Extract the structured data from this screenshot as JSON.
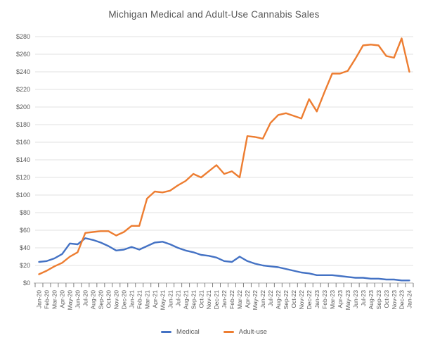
{
  "chart_data": {
    "type": "line",
    "title": "Michigan Medical and Adult-Use Cannabis Sales",
    "categories": [
      "Jan-20",
      "Feb-20",
      "Mar-20",
      "Apr-20",
      "May-20",
      "Jun-20",
      "Jul-20",
      "Aug-20",
      "Sep-20",
      "Oct-20",
      "Nov-20",
      "Dec-20",
      "Jan-21",
      "Feb-21",
      "Mar-21",
      "Apr-21",
      "May-21",
      "Jun-21",
      "Jul-21",
      "Aug-21",
      "Sep-21",
      "Oct-21",
      "Nov-21",
      "Dec-21",
      "Jan-22",
      "Feb-22",
      "Mar-22",
      "Apr-22",
      "May-22",
      "Jun-22",
      "Jul-22",
      "Aug-22",
      "Sep-22",
      "Oct-22",
      "Nov-22",
      "Dec-22",
      "Jan-23",
      "Feb-23",
      "Mar-23",
      "Apr-23",
      "May-23",
      "Jun-23",
      "Jul-23",
      "Aug-23",
      "Sep-23",
      "Oct-23",
      "Nov-23",
      "Dec-23",
      "Jan-24"
    ],
    "series": [
      {
        "name": "Medical",
        "color": "#4472C4",
        "values": [
          24,
          25,
          28,
          33,
          45,
          44,
          51,
          49,
          46,
          42,
          37,
          38,
          41,
          38,
          42,
          46,
          47,
          44,
          40,
          37,
          35,
          32,
          31,
          29,
          25,
          24,
          30,
          25,
          22,
          20,
          19,
          18,
          16,
          14,
          12,
          11,
          9,
          9,
          9,
          8,
          7,
          6,
          6,
          5,
          5,
          4,
          4,
          3,
          3
        ]
      },
      {
        "name": "Adult-use",
        "color": "#ED7D31",
        "values": [
          10,
          14,
          19,
          23,
          30,
          35,
          57,
          58,
          59,
          59,
          54,
          58,
          65,
          65,
          96,
          104,
          103,
          105,
          111,
          116,
          124,
          120,
          127,
          134,
          124,
          127,
          120,
          167,
          166,
          164,
          182,
          191,
          193,
          190,
          187,
          209,
          195,
          217,
          238,
          238,
          241,
          255,
          270,
          271,
          270,
          258,
          256,
          278,
          240
        ]
      }
    ],
    "xlabel": "",
    "ylabel": "",
    "ylim": [
      0,
      280
    ],
    "ytick_step": 20,
    "ytick_prefix": "$",
    "grid": true,
    "legend_position": "bottom"
  }
}
